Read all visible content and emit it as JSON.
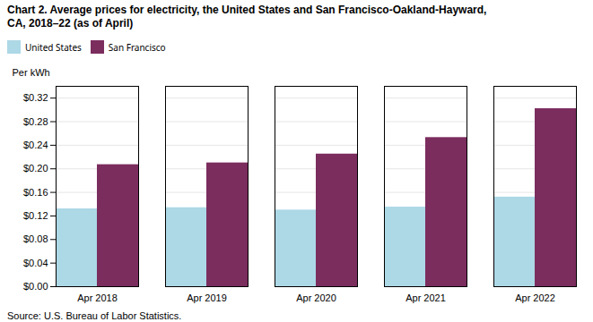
{
  "chart_data": {
    "type": "bar",
    "title": "Chart 2. Average prices for electricity, the United States and San Francisco-Oakland-Hayward,\nCA, 2018–22 (as of April)",
    "ylabel": "Per kWh",
    "source": "Source: U.S. Bureau of Labor Statistics.",
    "categories": [
      "Apr 2018",
      "Apr 2019",
      "Apr 2020",
      "Apr 2021",
      "Apr 2022"
    ],
    "series": [
      {
        "name": "United States",
        "color": "#ADD8E6",
        "values": [
          0.132,
          0.134,
          0.13,
          0.135,
          0.152
        ]
      },
      {
        "name": "San Francisco",
        "color": "#7B2D5E",
        "values": [
          0.207,
          0.21,
          0.225,
          0.253,
          0.302
        ]
      }
    ],
    "ylim": [
      0.0,
      0.34
    ],
    "yticks": [
      {
        "value": 0.0,
        "label": "$0.00"
      },
      {
        "value": 0.04,
        "label": "$0.04"
      },
      {
        "value": 0.08,
        "label": "$0.08"
      },
      {
        "value": 0.12,
        "label": "$0.12"
      },
      {
        "value": 0.16,
        "label": "$0.16"
      },
      {
        "value": 0.2,
        "label": "$0.20"
      },
      {
        "value": 0.24,
        "label": "$0.24"
      },
      {
        "value": 0.28,
        "label": "$0.28"
      },
      {
        "value": 0.32,
        "label": "$0.32"
      }
    ],
    "grid": true,
    "legend": "top"
  }
}
